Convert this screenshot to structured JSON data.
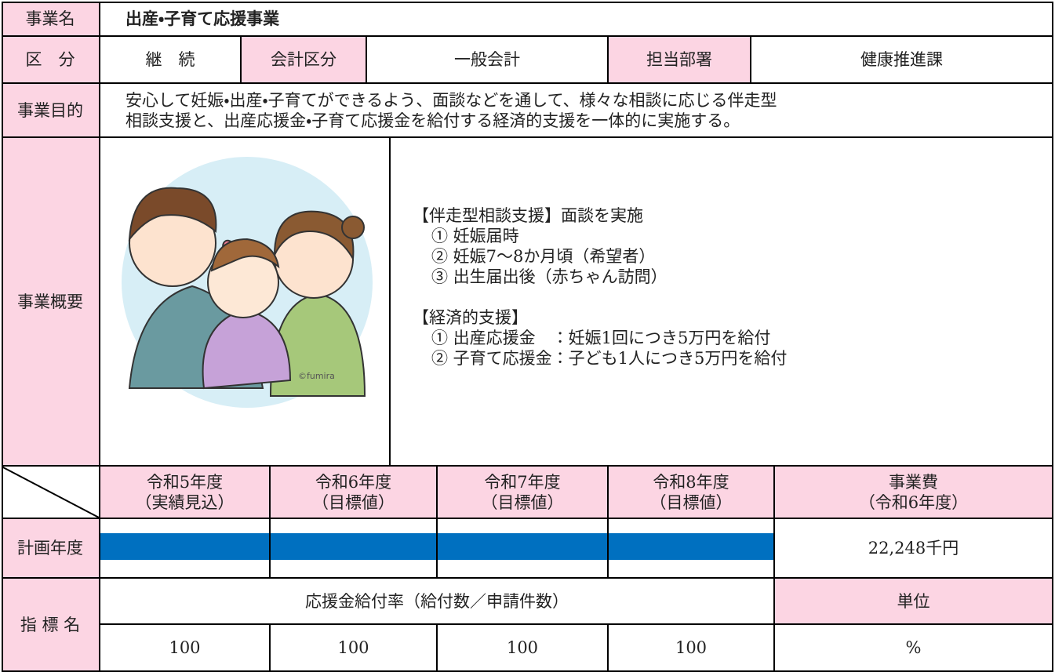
{
  "title_row": {
    "label": "事業名",
    "value": "出産・子育て応援事業"
  },
  "category_row": {
    "label": "区　分",
    "status": "継　続",
    "accounting_label": "会計区分",
    "accounting": "一般会計",
    "department_label": "担当部署",
    "department": "健康推進課"
  },
  "purpose": {
    "label": "事業目的",
    "lines": [
      "安心して妊娠・出産・子育てができるよう、面談などを通して、様々な相談に応じる伴走型",
      "相談支援と、出産応援金・子育て応援金を給付する経済的支援を一体的に実施する。"
    ]
  },
  "overview": {
    "label": "事業概要",
    "image_credit": "©fumira",
    "companion": {
      "heading": "【伴走型相談支援】面談を実施",
      "items": [
        "① 妊娠届時",
        "② 妊娠7～8か月頃（希望者）",
        "③ 出生届出後（赤ちゃん訪問）"
      ]
    },
    "economic": {
      "heading": "【経済的支援】",
      "items": [
        "① 出産応援金　：妊娠1回につき5万円を給付",
        "② 子育て応援金：子ども1人につき5万円を給付"
      ]
    }
  },
  "plan": {
    "headers": [
      [
        "令和5年度",
        "（実績見込）"
      ],
      [
        "令和6年度",
        "（目標値）"
      ],
      [
        "令和7年度",
        "（目標値）"
      ],
      [
        "令和8年度",
        "（目標値）"
      ]
    ],
    "cost_header": [
      "事業費",
      "（令和6年度）"
    ],
    "label": "計画年度",
    "cost": "22,248千円"
  },
  "indicator": {
    "label": "指 標 名",
    "name": "応援金給付率（給付数／申請件数）",
    "unit_label": "単位",
    "values": [
      100,
      100,
      100,
      100
    ],
    "unit": "%"
  }
}
